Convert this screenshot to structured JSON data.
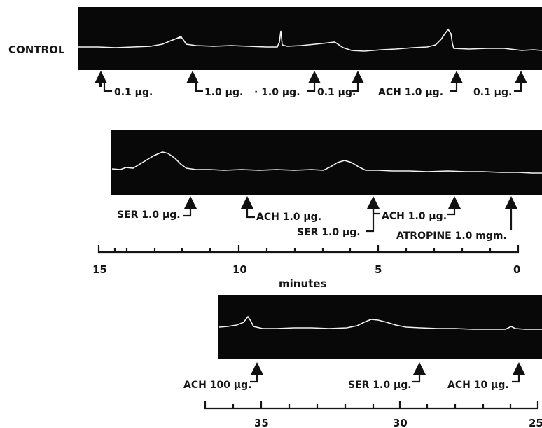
{
  "side_label": "CONTROL",
  "row1_doses": [
    "0.1 μg.",
    "1.0 μg.",
    "· 1.0 μg.",
    "0.1 μg.",
    "ACH 1.0 μg.",
    "0.1 μg."
  ],
  "row2_doses": [
    "SER 1.0 μg.",
    "ACH 1.0 μg.",
    "SER 1.0 μg.",
    "ACH 1.0 μg.",
    "ATROPINE 1.0 mgm."
  ],
  "row3_doses": [
    "ACH 100 μg.",
    "SER 1.0 μg.",
    "ACH 10 μg."
  ],
  "axis1": {
    "ticks": [
      "15",
      "10",
      "5",
      "0"
    ],
    "label": "minutes"
  },
  "axis2": {
    "ticks": [
      "35",
      "30",
      "25"
    ]
  }
}
